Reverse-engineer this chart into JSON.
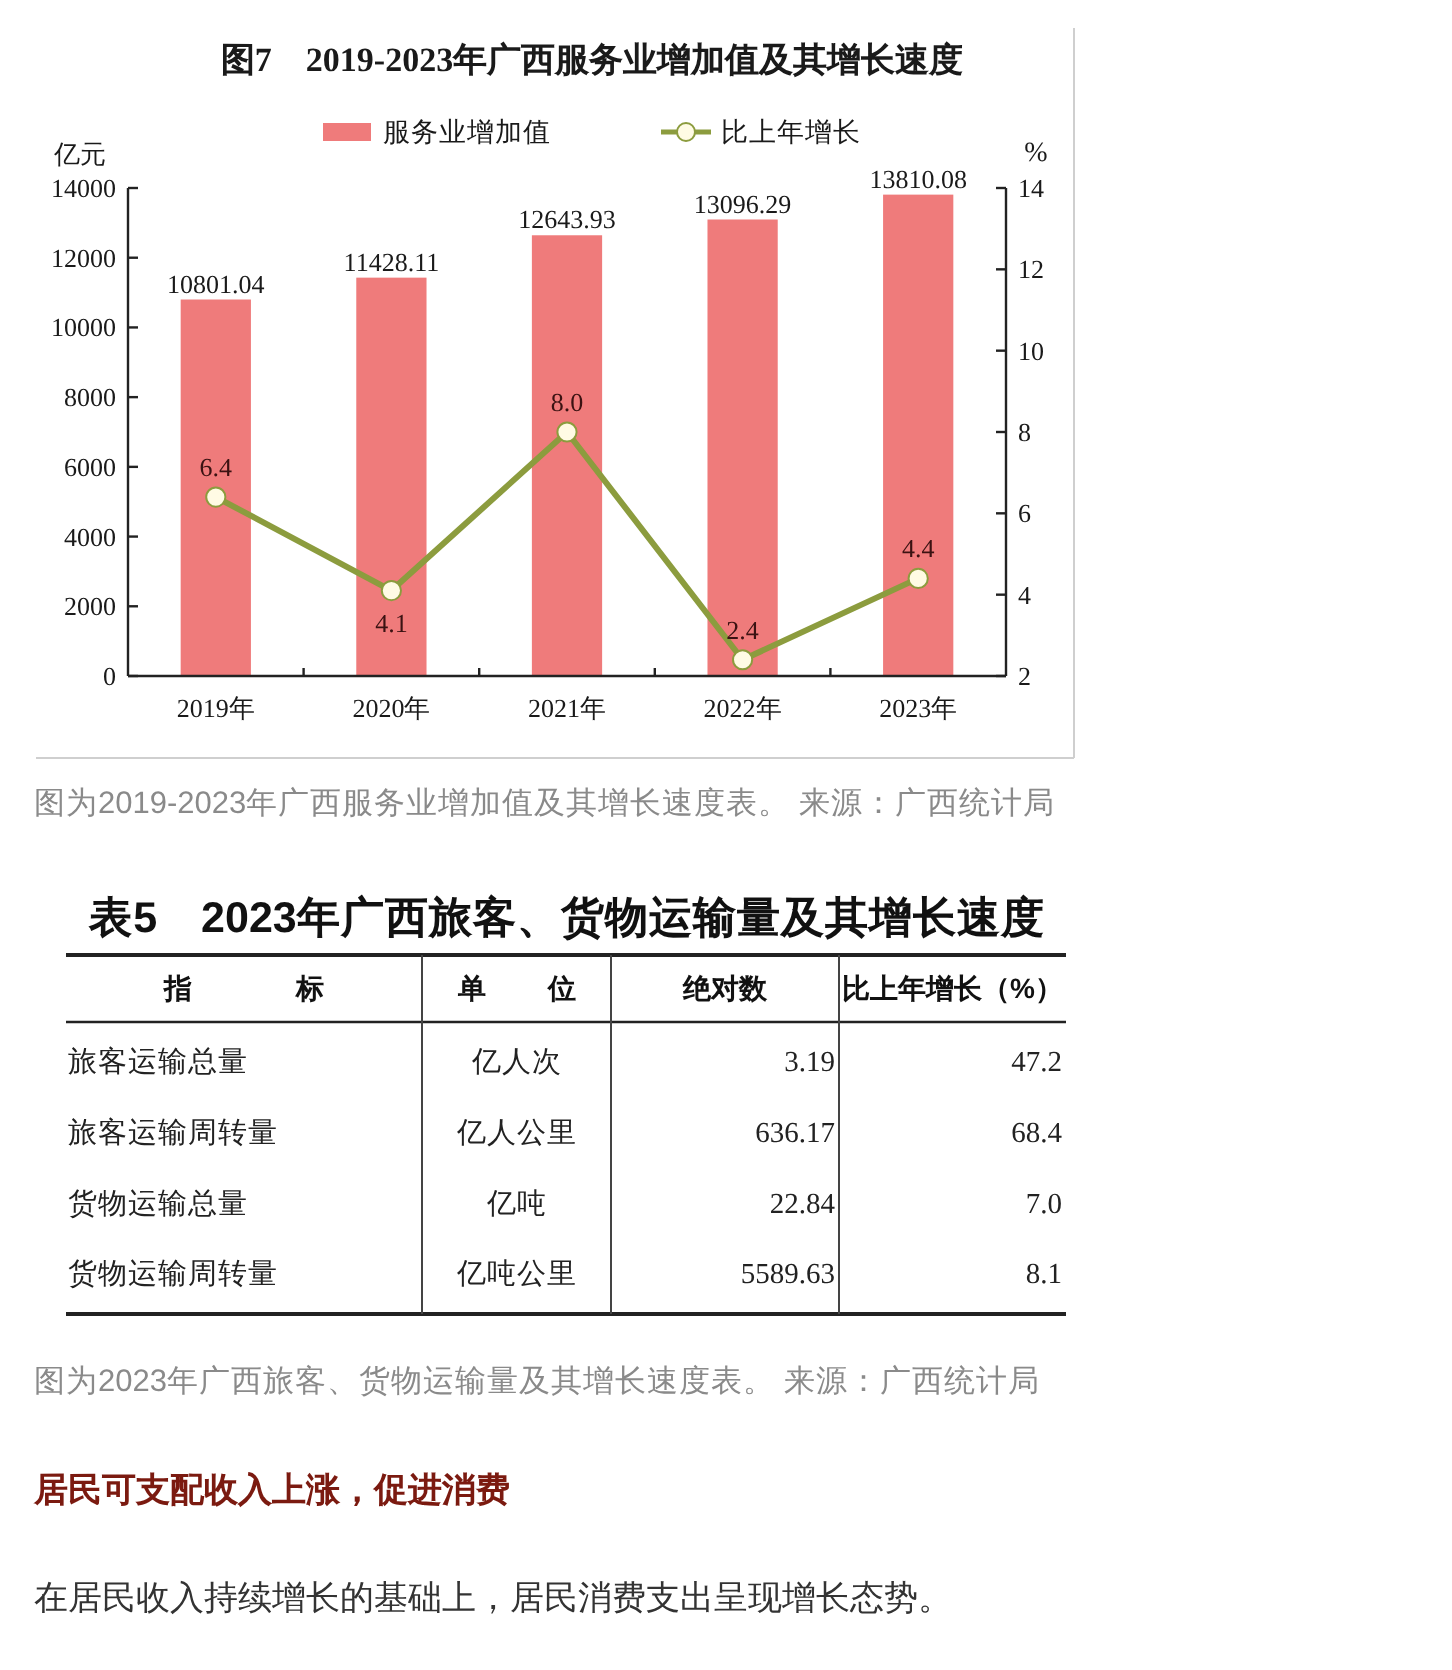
{
  "chart_data": [
    {
      "type": "bar",
      "title": "图7　2019-2023年广西服务业增加值及其增长速度",
      "ylabel": "亿元",
      "y2label": "%",
      "legend": "top",
      "categories": [
        "2019年",
        "2020年",
        "2021年",
        "2022年",
        "2023年"
      ],
      "series": [
        {
          "name": "服务业增加值",
          "type": "bar",
          "color": "#ef7b7b",
          "values": [
            10801.04,
            11428.11,
            12643.93,
            13096.29,
            13810.08
          ],
          "value_labels": [
            "10801.04",
            "11428.11",
            "12643.93",
            "13096.29",
            "13810.08"
          ]
        },
        {
          "name": "比上年增长",
          "type": "line",
          "axis": "y2",
          "color": "#8c9c3e",
          "marker": "circle",
          "values": [
            6.4,
            4.1,
            8.0,
            2.4,
            4.4
          ],
          "value_labels": [
            "6.4",
            "4.1",
            "8.0",
            "2.4",
            "4.4"
          ]
        }
      ],
      "ylim": [
        0,
        14000
      ],
      "yticks": [
        0,
        2000,
        4000,
        6000,
        8000,
        10000,
        12000,
        14000
      ],
      "y2lim": [
        2,
        14
      ],
      "y2ticks": [
        2,
        4,
        6,
        8,
        10,
        12,
        14
      ],
      "annotations": [
        "图为2019-2023年广西服务业增加值及其增长速度表。 来源：广西统计局"
      ]
    },
    {
      "type": "other",
      "title": "表5　2023年广西旅客、货物运输量及其增长速度",
      "categories": [
        "指标",
        "单位",
        "绝对数",
        "比上年增长（%）"
      ],
      "y_categories": [
        "旅客运输总量",
        "旅客运输周转量",
        "货物运输总量",
        "货物运输周转量"
      ],
      "annotations": [
        "亿人次",
        "3.19",
        "47.2",
        "亿人公里",
        "636.17",
        "68.4",
        "亿吨",
        "22.84",
        "7.0",
        "亿吨公里",
        "5589.63",
        "8.1",
        "图为2023年广西旅客、货物运输量及其增长速度表。 来源：广西统计局",
        "居民可支配收入上涨，促进消费",
        "在居民收入持续增长的基础上，居民消费支出呈现增长态势。"
      ]
    }
  ]
}
